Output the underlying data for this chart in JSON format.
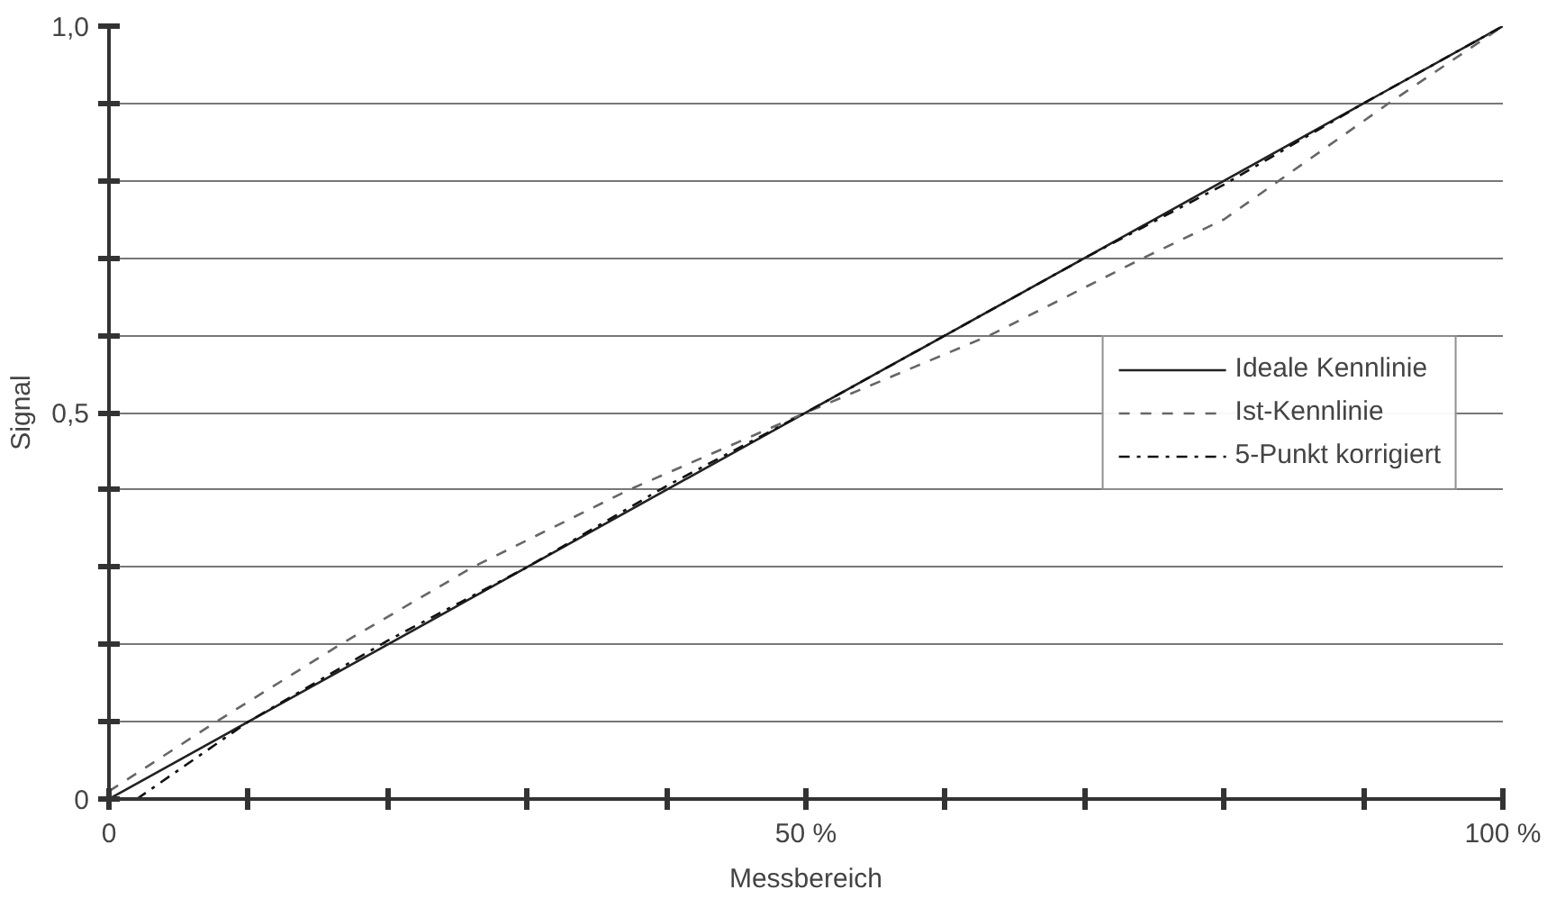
{
  "chart_data": {
    "type": "line",
    "xlabel": "Messbereich",
    "ylabel": "Signal",
    "xlim": [
      0,
      100
    ],
    "ylim": [
      0,
      1
    ],
    "xticks": [
      {
        "value": 0,
        "label": "0"
      },
      {
        "value": 10,
        "label": null
      },
      {
        "value": 20,
        "label": null
      },
      {
        "value": 30,
        "label": null
      },
      {
        "value": 40,
        "label": null
      },
      {
        "value": 50,
        "label": "50 %"
      },
      {
        "value": 60,
        "label": null
      },
      {
        "value": 70,
        "label": null
      },
      {
        "value": 80,
        "label": null
      },
      {
        "value": 90,
        "label": null
      },
      {
        "value": 100,
        "label": "100 %"
      }
    ],
    "yticks": [
      {
        "value": 0,
        "label": "0"
      },
      {
        "value": 0.1,
        "label": null
      },
      {
        "value": 0.2,
        "label": null
      },
      {
        "value": 0.3,
        "label": null
      },
      {
        "value": 0.4,
        "label": null
      },
      {
        "value": 0.5,
        "label": "0,5"
      },
      {
        "value": 0.6,
        "label": null
      },
      {
        "value": 0.7,
        "label": null
      },
      {
        "value": 0.8,
        "label": null
      },
      {
        "value": 0.9,
        "label": null
      },
      {
        "value": 1,
        "label": "1,0"
      }
    ],
    "grid": "y",
    "legend": "right",
    "series": [
      {
        "name": "Ideale Kennlinie",
        "color": "#222222",
        "line_style": "solid",
        "x": [
          0,
          100
        ],
        "values": [
          0,
          1
        ]
      },
      {
        "name": "Ist-Kennlinie",
        "color": "#666666",
        "line_style": "dashed",
        "x": [
          0,
          7.7,
          16.6,
          26.1,
          37.3,
          50,
          63.2,
          74.2,
          80,
          91.8,
          100
        ],
        "values": [
          0.01,
          0.1,
          0.2,
          0.3,
          0.4,
          0.5,
          0.6,
          0.7,
          0.75,
          0.9,
          1
        ]
      },
      {
        "name": "5-Punkt korrigiert",
        "color": "#111111",
        "line_style": "dashdot",
        "x": [
          2,
          10,
          20,
          30,
          40,
          50,
          60,
          70,
          80,
          90,
          100
        ],
        "values": [
          0,
          0.1,
          0.205,
          0.3,
          0.405,
          0.5,
          0.6,
          0.7,
          0.795,
          0.9,
          1
        ]
      }
    ]
  }
}
